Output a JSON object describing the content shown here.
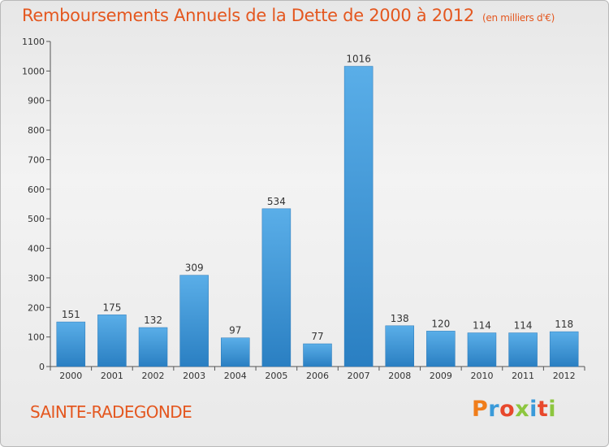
{
  "chart_data": {
    "type": "bar",
    "title": "Remboursements Annuels de la Dette de 2000 à 2012",
    "unit_label": "(en milliers d'€)",
    "categories": [
      "2000",
      "2001",
      "2002",
      "2003",
      "2004",
      "2005",
      "2006",
      "2007",
      "2008",
      "2009",
      "2010",
      "2011",
      "2012"
    ],
    "values": [
      151,
      175,
      132,
      309,
      97,
      534,
      77,
      1016,
      138,
      120,
      114,
      114,
      118
    ],
    "ylim": [
      0,
      1100
    ],
    "yticks": [
      0,
      100,
      200,
      300,
      400,
      500,
      600,
      700,
      800,
      900,
      1000,
      1100
    ],
    "xlabel": "",
    "ylabel": "",
    "grid": false,
    "bar_color": "#3a8fd4"
  },
  "footer": {
    "town": "SAINTE-RADEGONDE",
    "logo_text": "Proxiti",
    "logo_colors": [
      "#f07d1a",
      "#3a9ad9",
      "#e8482c",
      "#8dc63f",
      "#3a9ad9",
      "#e8482c",
      "#8dc63f"
    ]
  }
}
